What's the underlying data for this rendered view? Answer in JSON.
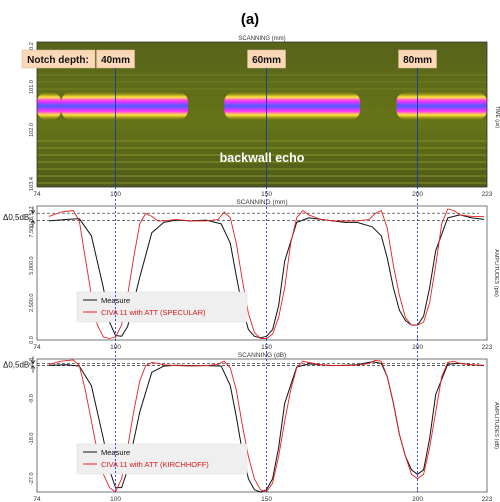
{
  "figure_label": "(a)",
  "chart_data": [
    {
      "type": "heatmap",
      "title": "",
      "xlabel": "SCANNING (mm)",
      "ylabel": "TIME (µs)",
      "xlim": [
        74,
        223
      ],
      "x_ticks": [
        "74",
        "100",
        "150",
        "200",
        "223"
      ],
      "y_ticks": [
        "0.2",
        "101.0",
        "102.0",
        "103.4"
      ],
      "notch_label": "Notch depth:",
      "notches": [
        {
          "label": "40mm",
          "x": 100
        },
        {
          "label": "60mm",
          "x": 150
        },
        {
          "label": "80mm",
          "x": 200
        }
      ],
      "annotation": "backwall echo",
      "echo_segments": [
        [
          74,
          82
        ],
        [
          82,
          124
        ],
        [
          136,
          181
        ],
        [
          193,
          223
        ]
      ],
      "colors": {
        "background": "#5e6d18",
        "band": "#ff33ff",
        "core": "#4466ff",
        "edge": "#e0c800"
      }
    },
    {
      "type": "line",
      "xlabel": "SCANNING (mm)",
      "ylabel": "AMPLITUDES (pts)",
      "xlim": [
        74,
        223
      ],
      "ylim": [
        0,
        9000
      ],
      "x_ticks": [
        74,
        100,
        150,
        200,
        223
      ],
      "y_ticks": [
        "0.0",
        "2,500.0",
        "5,000.0",
        "7,500.0",
        "8,517"
      ],
      "grid": false,
      "legend": "lower-left",
      "delta_label": "Δ0,5dB",
      "ref_lines": [
        8517,
        8030
      ],
      "series": [
        {
          "name": "Measure",
          "color": "#111111",
          "x": [
            78,
            84,
            88,
            92,
            96,
            98,
            100,
            102,
            104,
            108,
            112,
            116,
            120,
            125,
            130,
            135,
            138,
            140,
            142,
            144,
            146,
            148,
            150,
            152,
            154,
            156,
            160,
            164,
            168,
            172,
            176,
            180,
            185,
            188,
            190,
            192,
            194,
            196,
            198,
            200,
            202,
            204,
            206,
            210,
            214,
            218,
            222
          ],
          "y": [
            8000,
            8100,
            8150,
            7000,
            3500,
            1200,
            300,
            250,
            900,
            4200,
            7200,
            7900,
            8050,
            8000,
            8050,
            7800,
            6500,
            4300,
            2200,
            700,
            250,
            150,
            250,
            700,
            2300,
            5300,
            7900,
            8200,
            8100,
            8000,
            7900,
            7900,
            7600,
            7000,
            5500,
            3500,
            2000,
            1300,
            1000,
            1000,
            1600,
            3500,
            6000,
            8200,
            8400,
            8200,
            8100
          ]
        },
        {
          "name": "CIVA 11 with ATT (SPECULAR)",
          "color": "#e82020",
          "x": [
            78,
            82,
            86,
            88,
            90,
            92,
            94,
            96,
            98,
            100,
            102,
            104,
            106,
            108,
            110,
            112,
            114,
            116,
            120,
            125,
            130,
            134,
            136,
            138,
            140,
            142,
            144,
            146,
            148,
            150,
            152,
            154,
            156,
            158,
            160,
            162,
            164,
            168,
            172,
            176,
            180,
            184,
            186,
            188,
            190,
            192,
            194,
            196,
            198,
            200,
            202,
            204,
            206,
            208,
            210,
            212,
            214,
            218,
            222
          ],
          "y": [
            8300,
            8600,
            8700,
            8000,
            5500,
            3000,
            1000,
            200,
            100,
            200,
            1000,
            3000,
            5500,
            7800,
            8500,
            8300,
            8000,
            8000,
            8100,
            8000,
            8000,
            8100,
            8600,
            8200,
            6500,
            4000,
            1800,
            500,
            100,
            100,
            400,
            1500,
            3500,
            6500,
            8200,
            8700,
            8400,
            8100,
            8000,
            8000,
            8000,
            8100,
            8500,
            8700,
            7500,
            5000,
            3000,
            1500,
            1000,
            1000,
            1200,
            2500,
            5000,
            7800,
            8800,
            8700,
            8400,
            8300,
            8300
          ]
        }
      ]
    },
    {
      "type": "line",
      "xlabel": "SCANNING (dB)",
      "ylabel": "AMPLITUDES (dB)",
      "xlim": [
        74,
        223
      ],
      "ylim": [
        -30,
        0
      ],
      "x_ticks": [
        74,
        100,
        150,
        200,
        223
      ],
      "y_ticks": [
        "-0.8",
        "-9.0",
        "-18.0",
        "-27.0"
      ],
      "grid": false,
      "legend": "lower-left",
      "delta_label": "Δ0,5dB",
      "ref_lines": [
        -1.0,
        -1.5
      ],
      "series": [
        {
          "name": "Measure",
          "color": "#111111",
          "x": [
            78,
            84,
            88,
            92,
            96,
            98,
            100,
            102,
            104,
            108,
            112,
            116,
            120,
            125,
            130,
            135,
            138,
            140,
            142,
            144,
            146,
            148,
            150,
            152,
            154,
            156,
            160,
            164,
            168,
            172,
            176,
            180,
            185,
            188,
            190,
            192,
            194,
            196,
            198,
            200,
            202,
            204,
            206,
            210,
            214,
            218,
            222
          ],
          "y": [
            -1.4,
            -1.3,
            -1.6,
            -6,
            -18,
            -25,
            -29,
            -29,
            -25,
            -12,
            -3,
            -1.6,
            -1.4,
            -1.5,
            -1.5,
            -1.6,
            -6,
            -13,
            -21,
            -27,
            -29.5,
            -30,
            -29.5,
            -27,
            -20,
            -10,
            -1.8,
            -1.1,
            -1.3,
            -1.5,
            -1.4,
            -1.3,
            -0.6,
            -1.0,
            -4,
            -10,
            -17,
            -22,
            -25,
            -26,
            -25,
            -18,
            -8,
            -1.2,
            -1.0,
            -1.3,
            -1.5
          ]
        },
        {
          "name": "CIVA 11 with ATT (KIRCHHOFF)",
          "color": "#e82020",
          "x": [
            78,
            82,
            86,
            88,
            90,
            92,
            94,
            96,
            98,
            100,
            102,
            104,
            106,
            108,
            110,
            112,
            114,
            116,
            120,
            125,
            130,
            134,
            136,
            138,
            140,
            142,
            144,
            146,
            148,
            150,
            152,
            154,
            156,
            158,
            160,
            162,
            164,
            168,
            172,
            176,
            180,
            184,
            186,
            188,
            190,
            192,
            194,
            196,
            198,
            200,
            202,
            204,
            206,
            208,
            210,
            212,
            214,
            218,
            222
          ],
          "y": [
            -1.2,
            -0.5,
            -0.2,
            -1.5,
            -7,
            -14,
            -21,
            -26,
            -29,
            -30,
            -27,
            -20,
            -12,
            -5,
            -1.5,
            -0.8,
            -1.0,
            -1.3,
            -1.5,
            -1.6,
            -1.5,
            -1.2,
            -0.5,
            -2,
            -7,
            -15,
            -22,
            -27,
            -29.5,
            -30,
            -28,
            -22,
            -14,
            -7,
            -2,
            -0.5,
            -0.8,
            -1.3,
            -1.5,
            -1.5,
            -1.4,
            -1.0,
            -0.3,
            -0.5,
            -4,
            -10,
            -17,
            -22,
            -26,
            -27,
            -26,
            -20,
            -12,
            -4,
            -0.8,
            -0.5,
            -1.0,
            -1.3,
            -1.4
          ]
        }
      ]
    }
  ]
}
